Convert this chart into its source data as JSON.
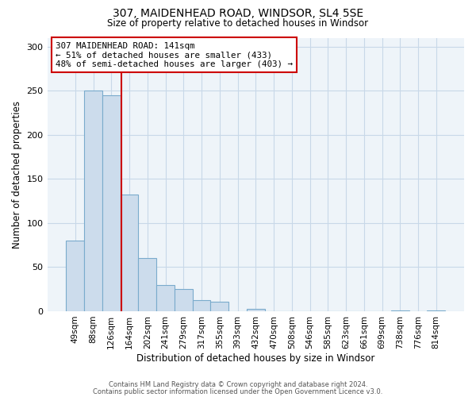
{
  "title": "307, MAIDENHEAD ROAD, WINDSOR, SL4 5SE",
  "subtitle": "Size of property relative to detached houses in Windsor",
  "xlabel": "Distribution of detached houses by size in Windsor",
  "ylabel": "Number of detached properties",
  "bar_labels": [
    "49sqm",
    "88sqm",
    "126sqm",
    "164sqm",
    "202sqm",
    "241sqm",
    "279sqm",
    "317sqm",
    "355sqm",
    "393sqm",
    "432sqm",
    "470sqm",
    "508sqm",
    "546sqm",
    "585sqm",
    "623sqm",
    "661sqm",
    "699sqm",
    "738sqm",
    "776sqm",
    "814sqm"
  ],
  "bar_values": [
    80,
    250,
    245,
    132,
    60,
    30,
    25,
    13,
    11,
    0,
    3,
    0,
    0,
    0,
    0,
    0,
    0,
    0,
    1,
    0,
    1
  ],
  "bar_color": "#ccdcec",
  "bar_edge_color": "#7aabcc",
  "plot_bg_color": "#eef4f9",
  "ylim": [
    0,
    310
  ],
  "yticks": [
    0,
    50,
    100,
    150,
    200,
    250,
    300
  ],
  "vline_x": 2.57,
  "vline_color": "#cc0000",
  "annotation_title": "307 MAIDENHEAD ROAD: 141sqm",
  "annotation_line1": "← 51% of detached houses are smaller (433)",
  "annotation_line2": "48% of semi-detached houses are larger (403) →",
  "annotation_box_color": "#cc0000",
  "footer1": "Contains HM Land Registry data © Crown copyright and database right 2024.",
  "footer2": "Contains public sector information licensed under the Open Government Licence v3.0.",
  "bg_color": "#ffffff",
  "grid_color": "#c8d8e8"
}
